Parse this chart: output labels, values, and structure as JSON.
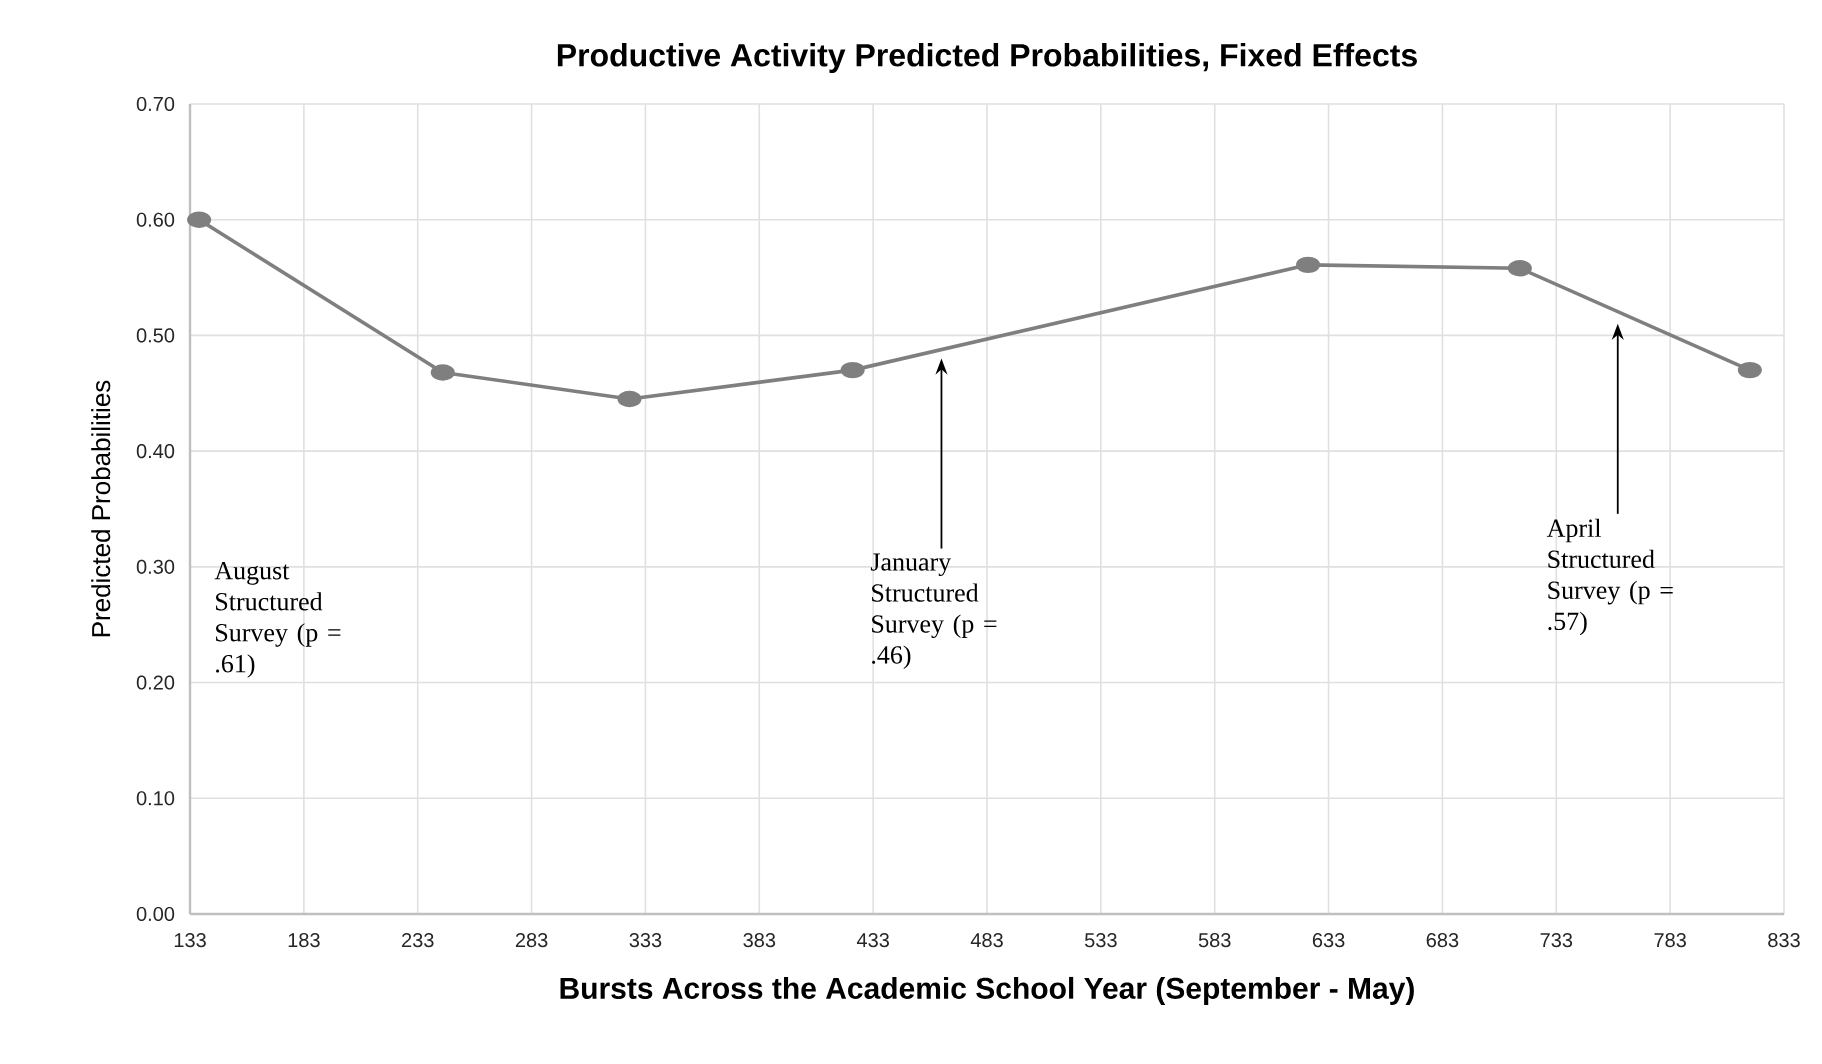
{
  "chart_data": {
    "type": "line",
    "title": "Productive Activity Predicted Probabilities, Fixed Effects",
    "xlabel": "Bursts Across the Academic School Year (September - May)",
    "ylabel": "Predicted Probabilities",
    "series": [
      {
        "color": "#7f7f7f",
        "x": [
          137,
          244,
          326,
          424,
          624,
          717,
          818
        ],
        "values": [
          0.6,
          0.468,
          0.445,
          0.47,
          0.561,
          0.558,
          0.47
        ]
      }
    ],
    "xlim": [
      133,
      833
    ],
    "xticks": [
      133,
      183,
      233,
      283,
      333,
      383,
      433,
      483,
      533,
      583,
      633,
      683,
      733,
      783,
      833
    ],
    "ylim": [
      0,
      0.7
    ],
    "yticks": [
      {
        "value": 0,
        "label": "0.00"
      },
      {
        "value": 0.1,
        "label": "0.10"
      },
      {
        "value": 0.2,
        "label": "0.20"
      },
      {
        "value": 0.3,
        "label": "0.30"
      },
      {
        "value": 0.4,
        "label": "0.40"
      },
      {
        "value": 0.5,
        "label": "0.50"
      },
      {
        "value": 0.6,
        "label": "0.60"
      },
      {
        "value": 0.7,
        "label": "0.70"
      }
    ],
    "grid": true,
    "marker": "circle",
    "line_style": "solid",
    "annotations": [
      "August Structured Survey (p = .61)",
      {
        "text": "January Structured Survey (p = .46)",
        "x": 463,
        "y": 0.48
      },
      {
        "text": "April Structured Survey (p = .57)",
        "x": 760,
        "y": 0.51
      }
    ]
  }
}
